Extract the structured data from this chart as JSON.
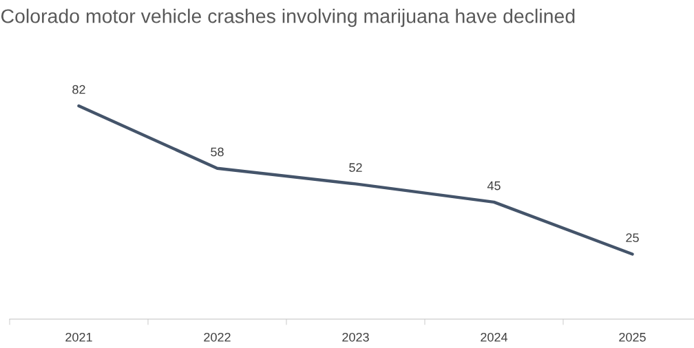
{
  "chart_data": {
    "type": "line",
    "title": "Colorado motor vehicle crashes involving marijuana have declined",
    "categories": [
      "2021",
      "2022",
      "2023",
      "2024",
      "2025"
    ],
    "series": [
      {
        "color": "#44546a",
        "values": [
          82,
          58,
          52,
          45,
          25
        ]
      }
    ],
    "tick_labels": "x",
    "data_labels": true,
    "grid": false,
    "legend": false,
    "marker": "none",
    "line_style": "solid"
  }
}
